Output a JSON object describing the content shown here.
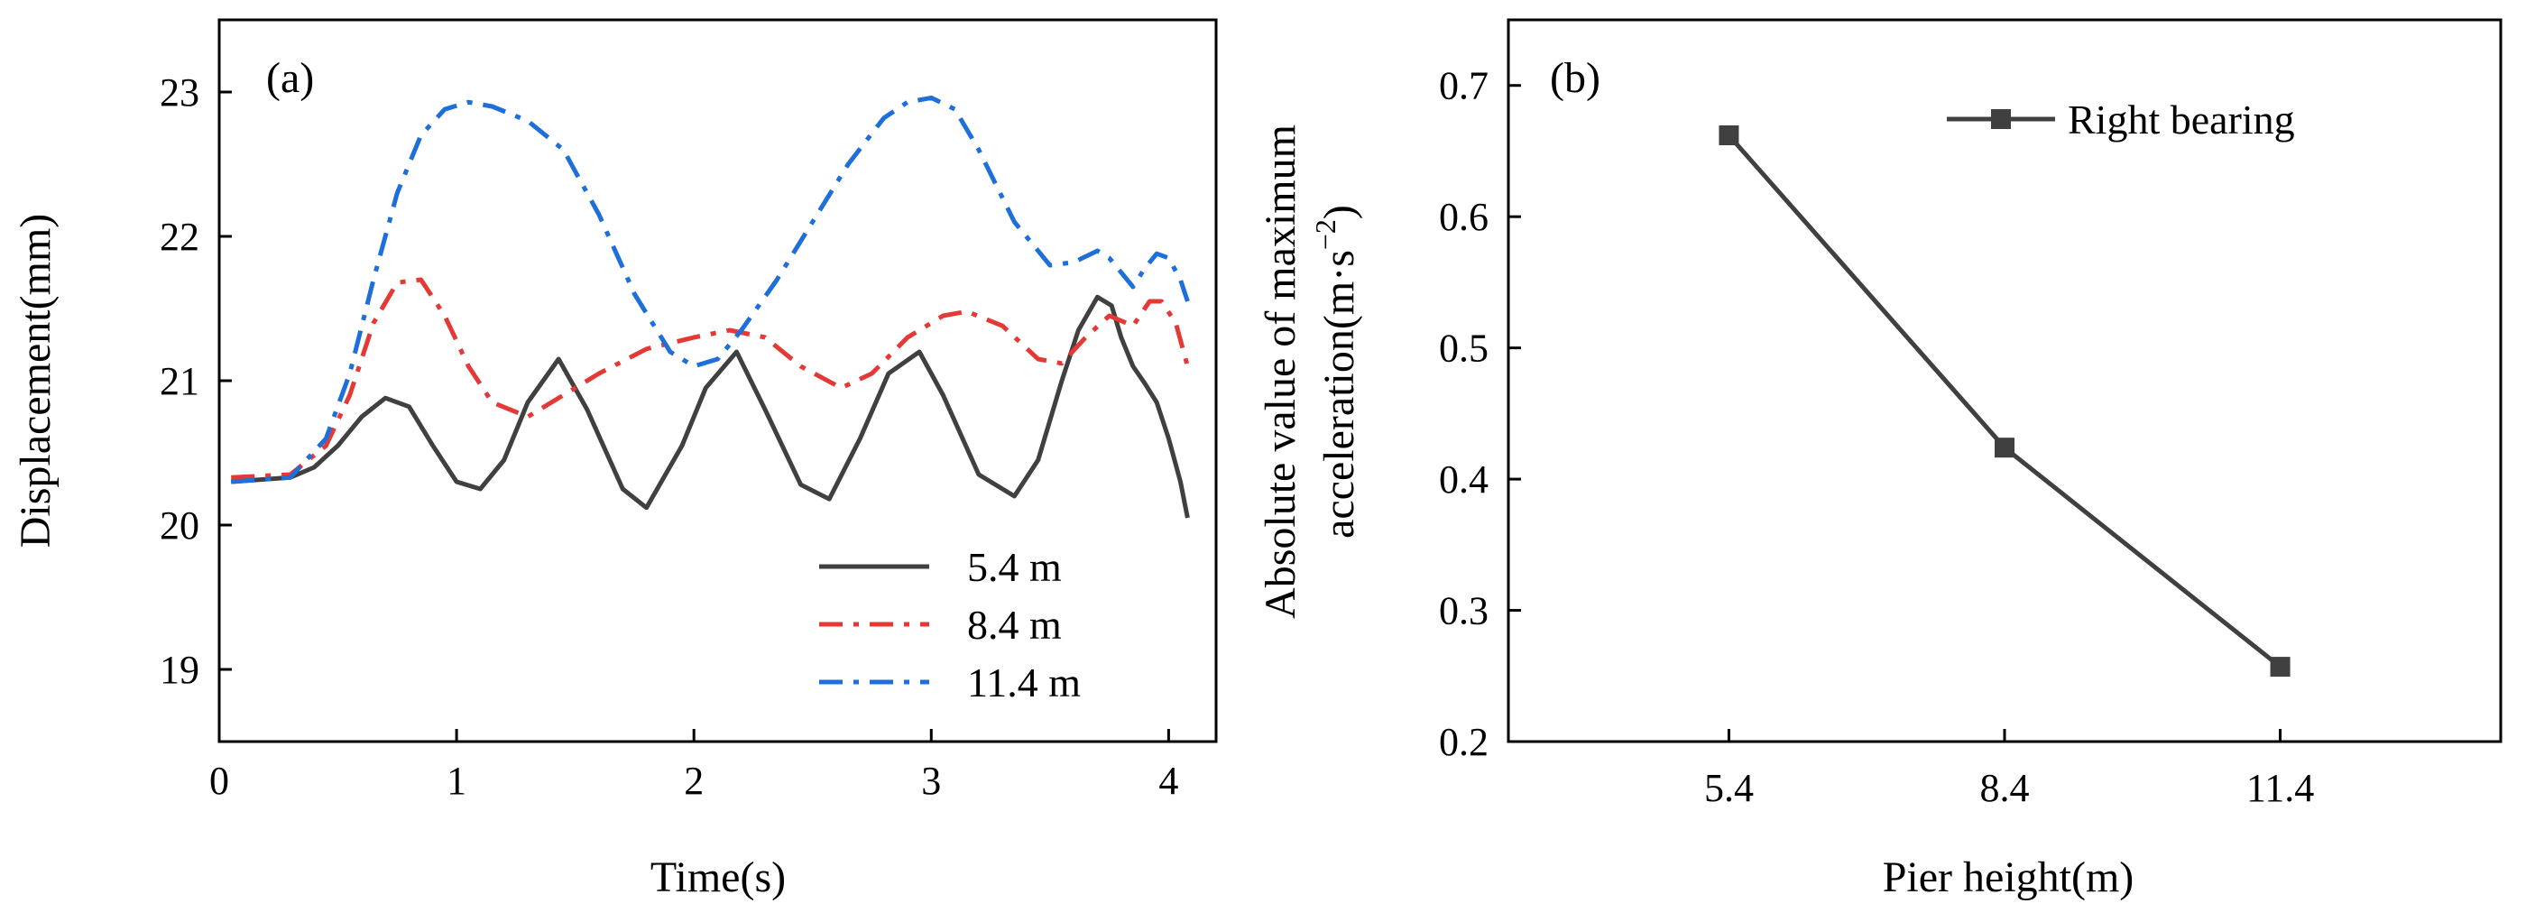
{
  "chart_data": [
    {
      "type": "line",
      "panel_label": "(a)",
      "xlabel": "Time(s)",
      "ylabel": "Displacement(mm)",
      "xlim": [
        0,
        4.2
      ],
      "ylim": [
        18.5,
        23.5
      ],
      "xticks": [
        "0",
        "1",
        "2",
        "3",
        "4"
      ],
      "yticks": [
        "19",
        "20",
        "21",
        "22",
        "23"
      ],
      "legend_position": "bottom-right",
      "series": [
        {
          "name": "5.4 m",
          "color": "#404040",
          "style": "solid",
          "x": [
            0.05,
            0.3,
            0.4,
            0.5,
            0.6,
            0.7,
            0.8,
            0.9,
            1.0,
            1.1,
            1.2,
            1.3,
            1.43,
            1.55,
            1.7,
            1.8,
            1.95,
            2.05,
            2.18,
            2.3,
            2.45,
            2.57,
            2.7,
            2.82,
            2.95,
            3.05,
            3.2,
            3.35,
            3.45,
            3.55,
            3.62,
            3.7,
            3.76,
            3.8,
            3.85,
            3.9,
            3.95,
            4.0,
            4.05,
            4.08
          ],
          "y": [
            20.3,
            20.33,
            20.4,
            20.55,
            20.75,
            20.88,
            20.82,
            20.55,
            20.3,
            20.25,
            20.45,
            20.85,
            21.15,
            20.8,
            20.25,
            20.12,
            20.55,
            20.95,
            21.2,
            20.8,
            20.28,
            20.18,
            20.6,
            21.05,
            21.2,
            20.9,
            20.35,
            20.2,
            20.45,
            21.0,
            21.35,
            21.58,
            21.52,
            21.3,
            21.1,
            20.98,
            20.85,
            20.6,
            20.3,
            20.05
          ]
        },
        {
          "name": "8.4 m",
          "color": "#e53935",
          "style": "dashdot",
          "x": [
            0.05,
            0.3,
            0.45,
            0.55,
            0.65,
            0.75,
            0.85,
            0.95,
            1.05,
            1.15,
            1.3,
            1.45,
            1.6,
            1.8,
            2.0,
            2.15,
            2.3,
            2.45,
            2.62,
            2.75,
            2.9,
            3.05,
            3.15,
            3.3,
            3.45,
            3.55,
            3.65,
            3.75,
            3.85,
            3.92,
            3.97,
            4.03,
            4.08
          ],
          "y": [
            20.33,
            20.35,
            20.55,
            20.9,
            21.4,
            21.68,
            21.7,
            21.45,
            21.1,
            20.85,
            20.75,
            20.9,
            21.05,
            21.22,
            21.3,
            21.35,
            21.3,
            21.1,
            20.95,
            21.05,
            21.3,
            21.45,
            21.48,
            21.38,
            21.15,
            21.12,
            21.3,
            21.45,
            21.38,
            21.55,
            21.55,
            21.4,
            21.1
          ]
        },
        {
          "name": "11.4 m",
          "color": "#1e6fd9",
          "style": "dashdot",
          "x": [
            0.05,
            0.3,
            0.45,
            0.55,
            0.65,
            0.75,
            0.85,
            0.95,
            1.05,
            1.15,
            1.3,
            1.45,
            1.6,
            1.75,
            1.9,
            2.0,
            2.1,
            2.2,
            2.35,
            2.5,
            2.65,
            2.8,
            2.9,
            3.0,
            3.1,
            3.2,
            3.35,
            3.5,
            3.6,
            3.7,
            3.75,
            3.8,
            3.85,
            3.9,
            3.95,
            4.0,
            4.05,
            4.08
          ],
          "y": [
            20.3,
            20.33,
            20.6,
            21.05,
            21.7,
            22.3,
            22.7,
            22.88,
            22.93,
            22.9,
            22.8,
            22.6,
            22.15,
            21.6,
            21.2,
            21.1,
            21.15,
            21.35,
            21.7,
            22.1,
            22.5,
            22.82,
            22.93,
            22.96,
            22.88,
            22.6,
            22.1,
            21.8,
            21.82,
            21.9,
            21.85,
            21.75,
            21.65,
            21.78,
            21.88,
            21.85,
            21.7,
            21.55
          ]
        }
      ]
    },
    {
      "type": "line",
      "panel_label": "(b)",
      "xlabel": "Pier height(m)",
      "ylabel_line1": "Absolute value of maximum",
      "ylabel_line2_main": "acceleration(m·s",
      "ylabel_line2_exp": "−2",
      "ylabel_line2_close": ")",
      "categories": [
        "5.4",
        "8.4",
        "11.4"
      ],
      "xlim": [
        3.0,
        13.8
      ],
      "ylim": [
        0.2,
        0.75
      ],
      "yticks": [
        "0.2",
        "0.3",
        "0.4",
        "0.5",
        "0.6",
        "0.7"
      ],
      "legend_position": "top-right",
      "series": [
        {
          "name": "Right bearing",
          "color": "#404040",
          "marker": "square",
          "x": [
            5.4,
            8.4,
            11.4
          ],
          "y": [
            0.662,
            0.424,
            0.257
          ]
        }
      ]
    }
  ]
}
